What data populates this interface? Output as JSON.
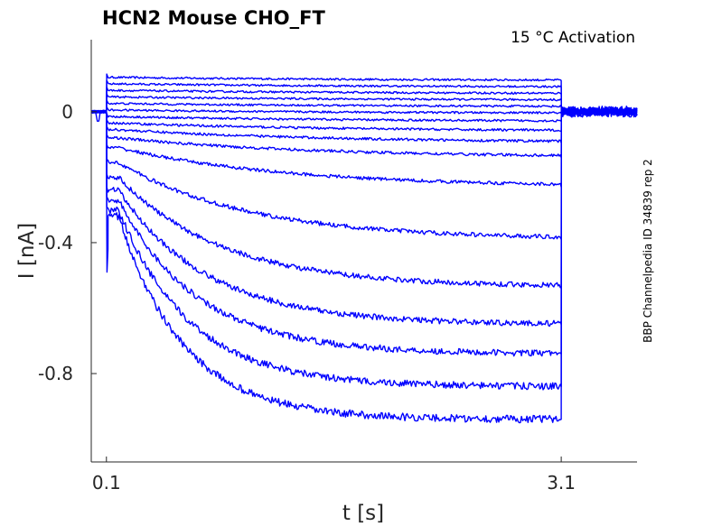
{
  "chart_data": {
    "type": "line",
    "title": "HCN2  Mouse  CHO_FT",
    "annotation": "15 °C  Activation",
    "side_label": "BBP Channelpedia ID 34839 rep 2",
    "xlabel": "t [s]",
    "ylabel": "I [nA]",
    "xlim": [
      0.0,
      3.6
    ],
    "ylim": [
      -1.07,
      0.22
    ],
    "xticks": [
      {
        "value": 0.1,
        "label": "0.1"
      },
      {
        "value": 3.1,
        "label": "3.1"
      }
    ],
    "yticks": [
      {
        "value": 0,
        "label": "0"
      },
      {
        "value": -0.4,
        "label": "-0.4"
      },
      {
        "value": -0.8,
        "label": "-0.8"
      }
    ],
    "grid": false,
    "line_color": "#0000ff",
    "step_start": 0.1,
    "step_end": 3.1,
    "holding_current": 0.0,
    "series": [
      {
        "peak": 0.105,
        "end": 0.095
      },
      {
        "peak": 0.085,
        "end": 0.075
      },
      {
        "peak": 0.065,
        "end": 0.055
      },
      {
        "peak": 0.045,
        "end": 0.035
      },
      {
        "peak": 0.025,
        "end": 0.015
      },
      {
        "peak": 0.005,
        "end": -0.005
      },
      {
        "peak": -0.015,
        "end": -0.03
      },
      {
        "peak": -0.035,
        "end": -0.06
      },
      {
        "peak": -0.055,
        "end": -0.095
      },
      {
        "peak": -0.08,
        "end": -0.14
      },
      {
        "peak": -0.11,
        "end": -0.23
      },
      {
        "peak": -0.155,
        "end": -0.39
      },
      {
        "peak": -0.2,
        "end": -0.535
      },
      {
        "peak": -0.24,
        "end": -0.65
      },
      {
        "peak": -0.27,
        "end": -0.74
      },
      {
        "peak": -0.3,
        "end": -0.84
      },
      {
        "peak": -0.32,
        "end": -0.94
      }
    ]
  }
}
